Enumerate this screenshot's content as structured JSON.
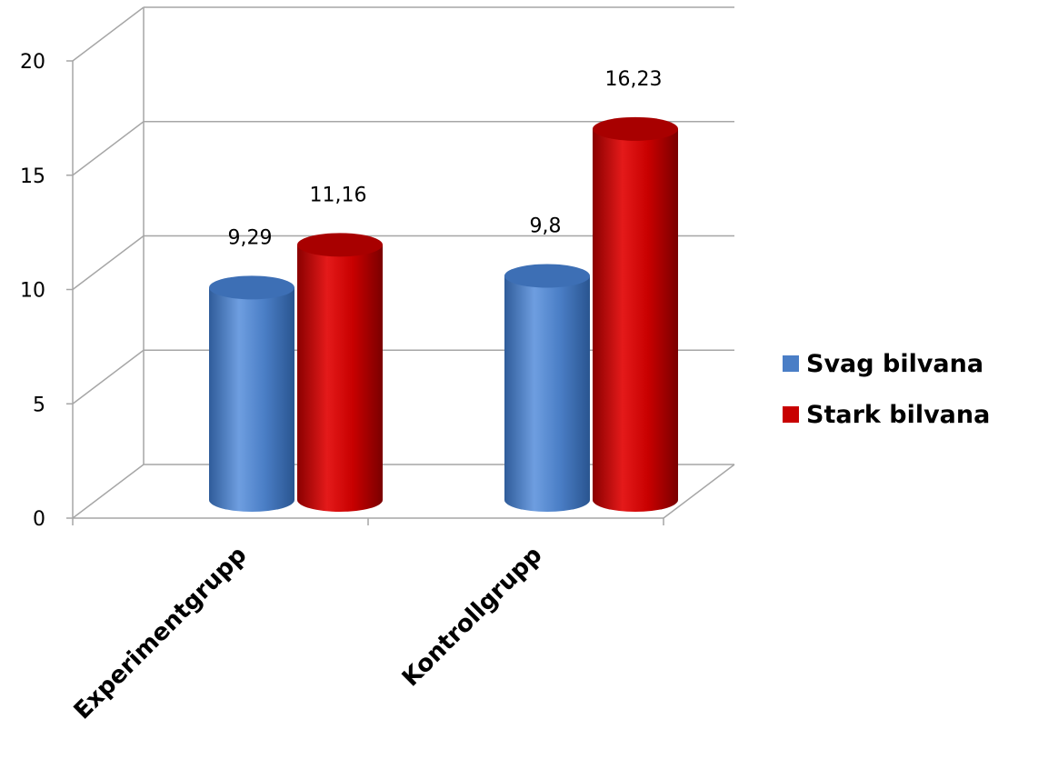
{
  "chart_data": {
    "type": "bar",
    "title": "",
    "xlabel": "",
    "ylabel": "",
    "ylim": [
      0,
      20
    ],
    "yticks": [
      0,
      5,
      10,
      15,
      20
    ],
    "ytick_labels": [
      "0",
      "5",
      "10",
      "15",
      "20"
    ],
    "grid": true,
    "style": "3d-cylinder",
    "legend": "right",
    "categories": [
      "Experimentgrupp",
      "Kontrollgrupp"
    ],
    "series": [
      {
        "name": "Svag bilvana",
        "color": "#4a7ec6",
        "values": [
          9.29,
          9.8
        ],
        "labels": [
          "9,29",
          "9,8"
        ]
      },
      {
        "name": "Stark bilvana",
        "color": "#c80000",
        "values": [
          11.16,
          16.23
        ],
        "labels": [
          "11,16",
          "16,23"
        ]
      }
    ]
  }
}
